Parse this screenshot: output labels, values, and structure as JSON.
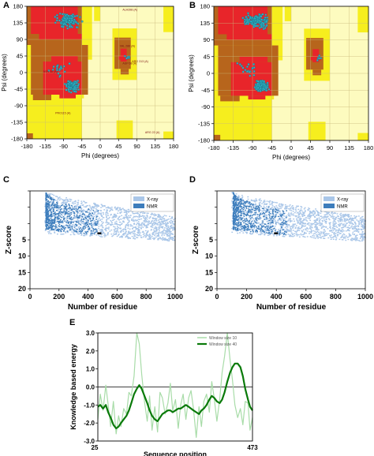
{
  "panels": {
    "A": "A",
    "B": "B",
    "C": "C",
    "D": "D",
    "E": "E"
  },
  "chart_data": [
    {
      "id": "A",
      "type": "scatter",
      "title": "",
      "xlabel": "Phi (degrees)",
      "ylabel": "Psi (degrees)",
      "xlim": [
        -180,
        180
      ],
      "ylim": [
        -180,
        180
      ],
      "xticks": [
        -180,
        -135,
        -90,
        -45,
        0,
        45,
        90,
        135,
        180
      ],
      "yticks": [
        180,
        135,
        90,
        45,
        0,
        -45,
        -90,
        -135,
        -180
      ],
      "xtick_labels": [
        "-180",
        "-135",
        "-90",
        "-45",
        "0",
        "45",
        "90",
        "135",
        "180"
      ],
      "ytick_labels": [
        "180",
        "135",
        "90",
        "45",
        "0",
        "-45",
        "-90",
        "-135",
        "-180"
      ],
      "region_colors": {
        "core": "#e8252a",
        "allowed": "#b7651c",
        "generous": "#f6ee1e",
        "disallowed": "#fdfbbf"
      },
      "point_color": "#2fb3c6",
      "annotations": [
        {
          "text": "ALA398 (A)",
          "x": 55,
          "y": 168
        },
        {
          "text": "VAL 286 (A)",
          "x": 48,
          "y": 70
        },
        {
          "text": "ASP 68 (A)",
          "x": 55,
          "y": 22
        },
        {
          "text": "ARG 313 (A)",
          "x": 78,
          "y": 28
        },
        {
          "text": "ASN 38 (A)",
          "x": -140,
          "y": 0
        },
        {
          "text": "PRO115 (A)",
          "x": -110,
          "y": -112
        },
        {
          "text": "ARG 22 (A)",
          "x": 110,
          "y": -165
        }
      ]
    },
    {
      "id": "B",
      "type": "scatter",
      "title": "",
      "xlabel": "Phi (degrees)",
      "ylabel": "Psi (degrees)",
      "xlim": [
        -180,
        180
      ],
      "ylim": [
        -180,
        180
      ],
      "xticks": [
        -180,
        -135,
        -90,
        -45,
        0,
        45,
        90,
        135,
        180
      ],
      "yticks": [
        180,
        135,
        90,
        45,
        0,
        -45,
        -90,
        -135,
        -180
      ],
      "xtick_labels": [
        "-180",
        "-135",
        "-90",
        "-45",
        "0",
        "45",
        "90",
        "135",
        "180"
      ],
      "ytick_labels": [
        "180",
        "135",
        "90",
        "45",
        "0",
        "-45",
        "-90",
        "-135",
        "-180"
      ],
      "region_colors": {
        "core": "#e8252a",
        "allowed": "#b7651c",
        "generous": "#f6ee1e",
        "disallowed": "#fdfbbf"
      },
      "point_color": "#2fb3c6"
    },
    {
      "id": "C",
      "type": "scatter",
      "title": "",
      "xlabel": "Number of residue",
      "ylabel": "Z-score",
      "xlim": [
        0,
        1000
      ],
      "ylim": [
        -20,
        10
      ],
      "xticks": [
        0,
        200,
        400,
        600,
        800,
        1000
      ],
      "yticks": [
        10,
        5,
        0,
        -5,
        -10,
        -15,
        -20
      ],
      "xtick_labels": [
        "0",
        "200",
        "400",
        "600",
        "800",
        "1000"
      ],
      "ytick_labels": [
        "",
        "",
        "",
        "5",
        "10",
        "15",
        "20"
      ],
      "legend": {
        "position": "top-right",
        "entries": [
          {
            "name": "X-ray",
            "color": "#a9c6e8"
          },
          {
            "name": "NMR",
            "color": "#3d7dbc"
          }
        ]
      },
      "query_point": {
        "x": 478,
        "y": 8.5
      }
    },
    {
      "id": "D",
      "type": "scatter",
      "title": "",
      "xlabel": "Number of residue",
      "ylabel": "Z-score",
      "xlim": [
        0,
        1000
      ],
      "ylim": [
        -20,
        10
      ],
      "xticks": [
        0,
        200,
        400,
        600,
        800,
        1000
      ],
      "yticks": [
        10,
        5,
        0,
        -5,
        -10,
        -15,
        -20
      ],
      "xtick_labels": [
        "0",
        "200",
        "400",
        "600",
        "800",
        "1000"
      ],
      "ytick_labels": [
        "",
        "",
        "",
        "5",
        "10",
        "15",
        "20"
      ],
      "legend": {
        "position": "top-right",
        "entries": [
          {
            "name": "X-ray",
            "color": "#a9c6e8"
          },
          {
            "name": "NMR",
            "color": "#3d7dbc"
          }
        ]
      },
      "query_point": {
        "x": 398,
        "y": 7.5
      }
    },
    {
      "id": "E",
      "type": "line",
      "title": "",
      "xlabel": "Sequence position",
      "ylabel": "Knowledge based energy",
      "xlim": [
        25,
        473
      ],
      "ylim": [
        -3,
        3
      ],
      "xtick_labels": [
        "25",
        "473"
      ],
      "ytick_labels": [
        "3.0",
        "2.0",
        "1.0",
        "0.0",
        "-1.0",
        "-2.0",
        "-3.0"
      ],
      "yticks": [
        3,
        2,
        1,
        0,
        -1,
        -2,
        -3
      ],
      "legend": {
        "position": "top-right",
        "entries": [
          {
            "name": "Window size 10",
            "color": "#a8dca8"
          },
          {
            "name": "Window size 40",
            "color": "#0a7a0a"
          }
        ]
      },
      "series": [
        {
          "name": "Window size 10",
          "color": "#a8dca8",
          "x": [
            25,
            32,
            40,
            48,
            55,
            62,
            70,
            78,
            85,
            92,
            100,
            108,
            115,
            122,
            130,
            138,
            145,
            152,
            160,
            168,
            175,
            182,
            190,
            198,
            205,
            212,
            220,
            228,
            235,
            242,
            250,
            258,
            265,
            272,
            280,
            288,
            295,
            302,
            310,
            318,
            325,
            332,
            340,
            348,
            355,
            362,
            370,
            378,
            385,
            392,
            400,
            408,
            415,
            422,
            430,
            438,
            445,
            452,
            460,
            466,
            473
          ],
          "y": [
            -1.8,
            -0.4,
            -1.3,
            0.1,
            -1.0,
            -2.2,
            -0.8,
            -2.6,
            -1.6,
            -2.2,
            -1.2,
            -1.5,
            -0.3,
            -0.5,
            0.6,
            3.0,
            2.4,
            0.7,
            -0.8,
            -1.9,
            -0.5,
            -2.4,
            -1.1,
            -2.5,
            -0.3,
            -0.6,
            -1.5,
            -0.9,
            0.2,
            -1.3,
            -0.7,
            -2.3,
            -1.0,
            -0.4,
            -1.8,
            -0.6,
            -0.2,
            -1.2,
            -2.8,
            -1.1,
            -2.2,
            -0.8,
            -0.4,
            -1.4,
            0.3,
            -0.6,
            -1.9,
            -0.7,
            0.8,
            1.7,
            3.0,
            1.5,
            0.4,
            -1.0,
            -1.7,
            -1.2,
            -2.1,
            -0.8,
            -0.9,
            -2.4,
            -1.7
          ]
        },
        {
          "name": "Window size 40",
          "color": "#0a7a0a",
          "x": [
            25,
            32,
            40,
            48,
            55,
            62,
            70,
            78,
            85,
            92,
            100,
            108,
            115,
            122,
            130,
            138,
            145,
            152,
            160,
            168,
            175,
            182,
            190,
            198,
            205,
            212,
            220,
            228,
            235,
            242,
            250,
            258,
            265,
            272,
            280,
            288,
            295,
            302,
            310,
            318,
            325,
            332,
            340,
            348,
            355,
            362,
            370,
            378,
            385,
            392,
            400,
            408,
            415,
            422,
            430,
            438,
            445,
            452,
            460,
            466,
            473
          ],
          "y": [
            -1.1,
            -1.0,
            -1.2,
            -1.0,
            -1.4,
            -1.7,
            -2.1,
            -2.3,
            -2.2,
            -2.0,
            -1.8,
            -1.6,
            -1.3,
            -0.9,
            -0.4,
            -0.1,
            0.1,
            -0.1,
            -0.5,
            -0.9,
            -1.3,
            -1.6,
            -1.8,
            -1.9,
            -1.7,
            -1.5,
            -1.4,
            -1.3,
            -1.3,
            -1.4,
            -1.3,
            -1.2,
            -1.2,
            -1.1,
            -1.0,
            -1.1,
            -1.2,
            -1.3,
            -1.4,
            -1.5,
            -1.3,
            -1.2,
            -1.0,
            -0.7,
            -0.5,
            -0.6,
            -0.8,
            -0.9,
            -0.7,
            -0.3,
            0.3,
            0.8,
            1.1,
            1.3,
            1.3,
            1.1,
            0.6,
            -0.1,
            -0.7,
            -1.1,
            -1.3
          ]
        }
      ]
    }
  ]
}
